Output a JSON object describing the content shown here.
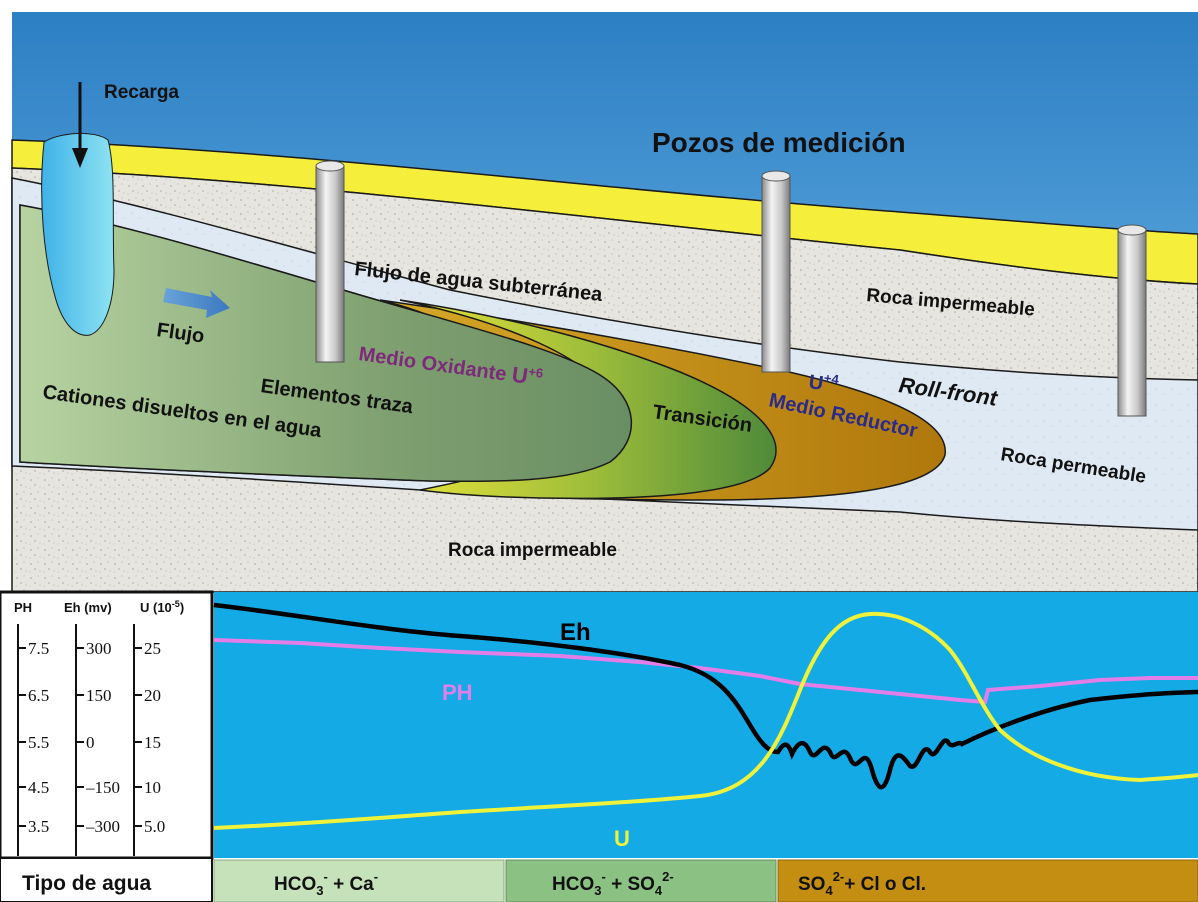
{
  "labels": {
    "recarga": "Recarga",
    "pozos": "Pozos de medición",
    "flujo_agua": "Flujo de agua subterránea",
    "roca_imp_top": "Roca impermeable",
    "roca_imp_bottom": "Roca impermeable",
    "flujo": "Flujo",
    "medio_oxidante": "Medio Oxidante",
    "u6_base": "U",
    "u6_sup": "+6",
    "elementos_traza": "Elementos traza",
    "cationes": "Cationes disueltos en el agua",
    "transicion": "Transición",
    "u4_base": "U",
    "u4_sup": "+4",
    "medio_reductor": "Medio Reductor",
    "roll_front": "Roll-front",
    "roca_perm": "Roca permeable"
  },
  "scales": {
    "ph_header": "PH",
    "eh_header": "Eh (mv)",
    "u_header_base": "U (10",
    "u_header_sup": "-5",
    "u_header_end": ")",
    "ph_ticks": [
      "7.5",
      "6.5",
      "5.5",
      "4.5",
      "3.5"
    ],
    "eh_ticks": [
      "300",
      "150",
      "0",
      "–150",
      "–300"
    ],
    "u_ticks": [
      "25",
      "20",
      "15",
      "10",
      "5.0"
    ]
  },
  "curves": {
    "eh": "Eh",
    "ph": "PH",
    "u": "U"
  },
  "water": {
    "tipo": "Tipo de agua",
    "zone1": {
      "a": "HCO",
      "a_sub": "3",
      "a_sup": "-",
      "b": " + Ca",
      "b_sup": "-"
    },
    "zone2": {
      "a": "HCO",
      "a_sub": "3",
      "a_sup": "-",
      "b": " + SO",
      "b_sub": "4",
      "b_sup": "2-"
    },
    "zone3": {
      "a": "SO",
      "a_sub": "4",
      "a_sup": "2-",
      "b": "+ Cl o Cl."
    }
  },
  "colors": {
    "sky": "#3b8fcf",
    "yellow_layer": "#f4ee3a",
    "rock": "#e6e4de",
    "permeable": "#dce8f4",
    "oxidized": "#9bb88a",
    "reduced": "#c99a16",
    "chart_bg": "#14aae6",
    "eh_line": "#000000",
    "ph_line": "#e37ee8",
    "u_line": "#eef23a",
    "zone1": "#c6e2bb",
    "zone2": "#8cc184",
    "zone3": "#c48e12"
  }
}
